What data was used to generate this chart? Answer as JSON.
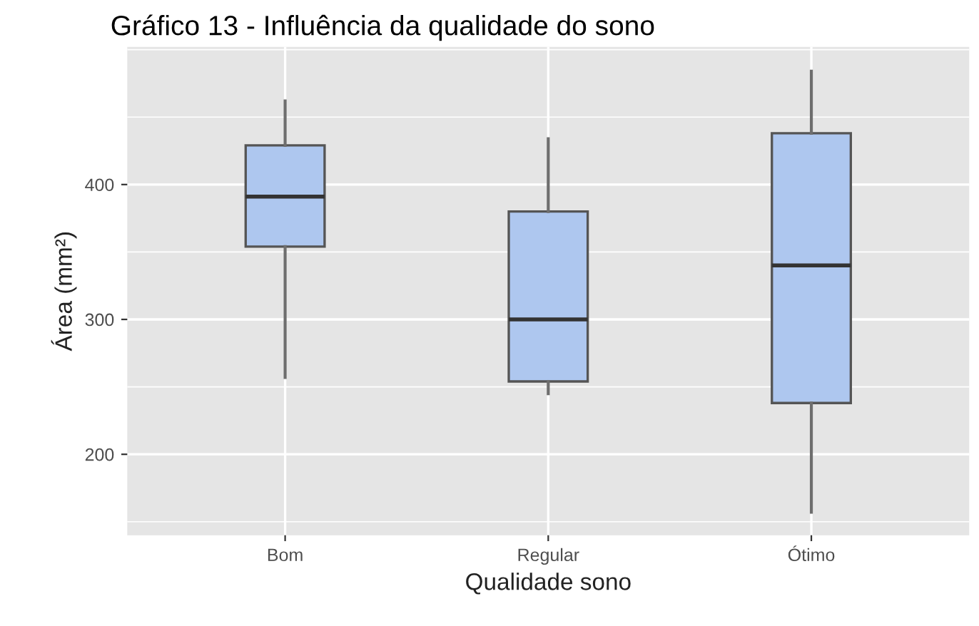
{
  "chart_data": {
    "type": "box",
    "title": "Gráfico 13 - Influência da qualidade do sono",
    "xlabel": "Qualidade sono",
    "ylabel": "Área (mm²)",
    "categories": [
      "Bom",
      "Regular",
      "Ótimo"
    ],
    "boxes": [
      {
        "low": 257,
        "q1": 354,
        "median": 391,
        "q3": 429,
        "high": 462
      },
      {
        "low": 245,
        "q1": 254,
        "median": 300,
        "q3": 380,
        "high": 434
      },
      {
        "low": 157,
        "q1": 238,
        "median": 340,
        "q3": 438,
        "high": 484
      }
    ],
    "color": "#aec7ef",
    "ylim": [
      140,
      502
    ],
    "yticks": [
      200,
      300,
      400
    ],
    "grid": true
  }
}
